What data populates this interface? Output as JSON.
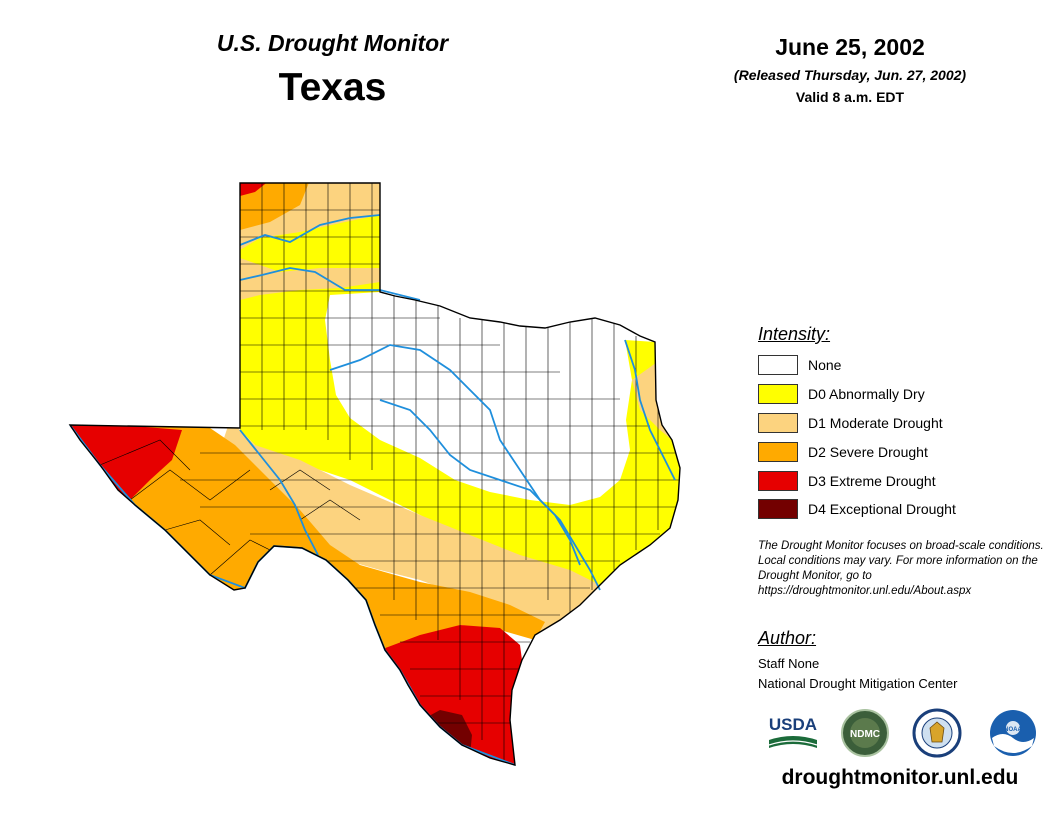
{
  "header": {
    "subtitle": "U.S. Drought Monitor",
    "state": "Texas",
    "date": "June 25, 2002",
    "released": "(Released Thursday, Jun. 27, 2002)",
    "valid": "Valid 8 a.m. EDT"
  },
  "legend": {
    "title": "Intensity:",
    "items": [
      {
        "label": "None",
        "color": "#ffffff"
      },
      {
        "label": "D0 Abnormally Dry",
        "color": "#ffff00"
      },
      {
        "label": "D1 Moderate Drought",
        "color": "#fcd37f"
      },
      {
        "label": "D2 Severe Drought",
        "color": "#ffaa00"
      },
      {
        "label": "D3 Extreme Drought",
        "color": "#e60000"
      },
      {
        "label": "D4 Exceptional Drought",
        "color": "#730000"
      }
    ]
  },
  "note": "The Drought Monitor focuses on broad-scale conditions. Local conditions may vary. For more information on the Drought Monitor, go to https://droughtmonitor.unl.edu/About.aspx",
  "author": {
    "title": "Author:",
    "name": "Staff None",
    "org": "National Drought Mitigation Center"
  },
  "logos": {
    "usda": "USDA",
    "ndmc": "NDMC",
    "noaa": "NOAA"
  },
  "website": "droughtmonitor.unl.edu",
  "colors": {
    "river": "#1f8fdc",
    "county_line": "#000000"
  }
}
